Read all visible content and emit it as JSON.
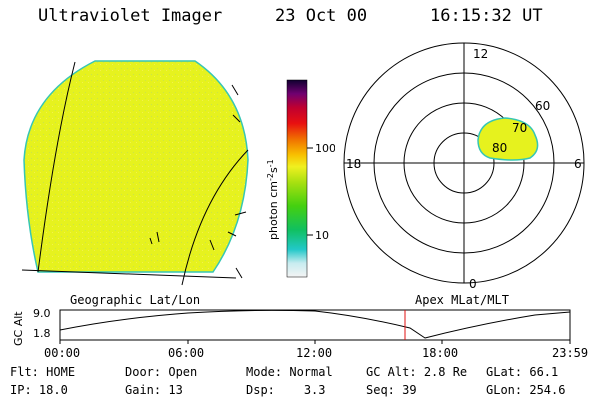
{
  "header": {
    "title": "Ultraviolet Imager",
    "date": "23 Oct 00",
    "time": "16:15:32 UT"
  },
  "colors": {
    "disk_fill": "#e6f21e",
    "disk_edge": "#36c6b4",
    "aurora_fill": "#e6f21e"
  },
  "colorbar": {
    "label": "photon cm",
    "label_sup1": "-2",
    "label_mid": "s",
    "label_sup2": "-1",
    "ticks": [
      "100",
      "10"
    ]
  },
  "polar": {
    "mlt_labels": [
      "12",
      "18",
      "6",
      "0"
    ],
    "lat_labels": [
      "60",
      "70",
      "80"
    ]
  },
  "captions": {
    "left": "Geographic Lat/Lon",
    "right": "Apex MLat/MLT"
  },
  "orbit": {
    "axis_label": "GC Alt",
    "y_ticks": [
      "9.0",
      "1.8"
    ],
    "x_ticks": [
      "00:00",
      "06:00",
      "12:00",
      "18:00",
      "23:59"
    ]
  },
  "info": [
    [
      {
        "k": "Flt:",
        "v": "HOME"
      },
      {
        "k": "Door:",
        "v": "Open"
      },
      {
        "k": "Mode:",
        "v": "Normal"
      },
      {
        "k": "GC Alt:",
        "v": "2.8 Re"
      },
      {
        "k": "GLat:",
        "v": "66.1"
      }
    ],
    [
      {
        "k": "IP:",
        "v": "18.0"
      },
      {
        "k": "Gain:",
        "v": "13"
      },
      {
        "k": "Dsp:",
        "v": "3.3"
      },
      {
        "k": "Seq:",
        "v": "39"
      },
      {
        "k": "GLon:",
        "v": "254.6"
      }
    ]
  ]
}
